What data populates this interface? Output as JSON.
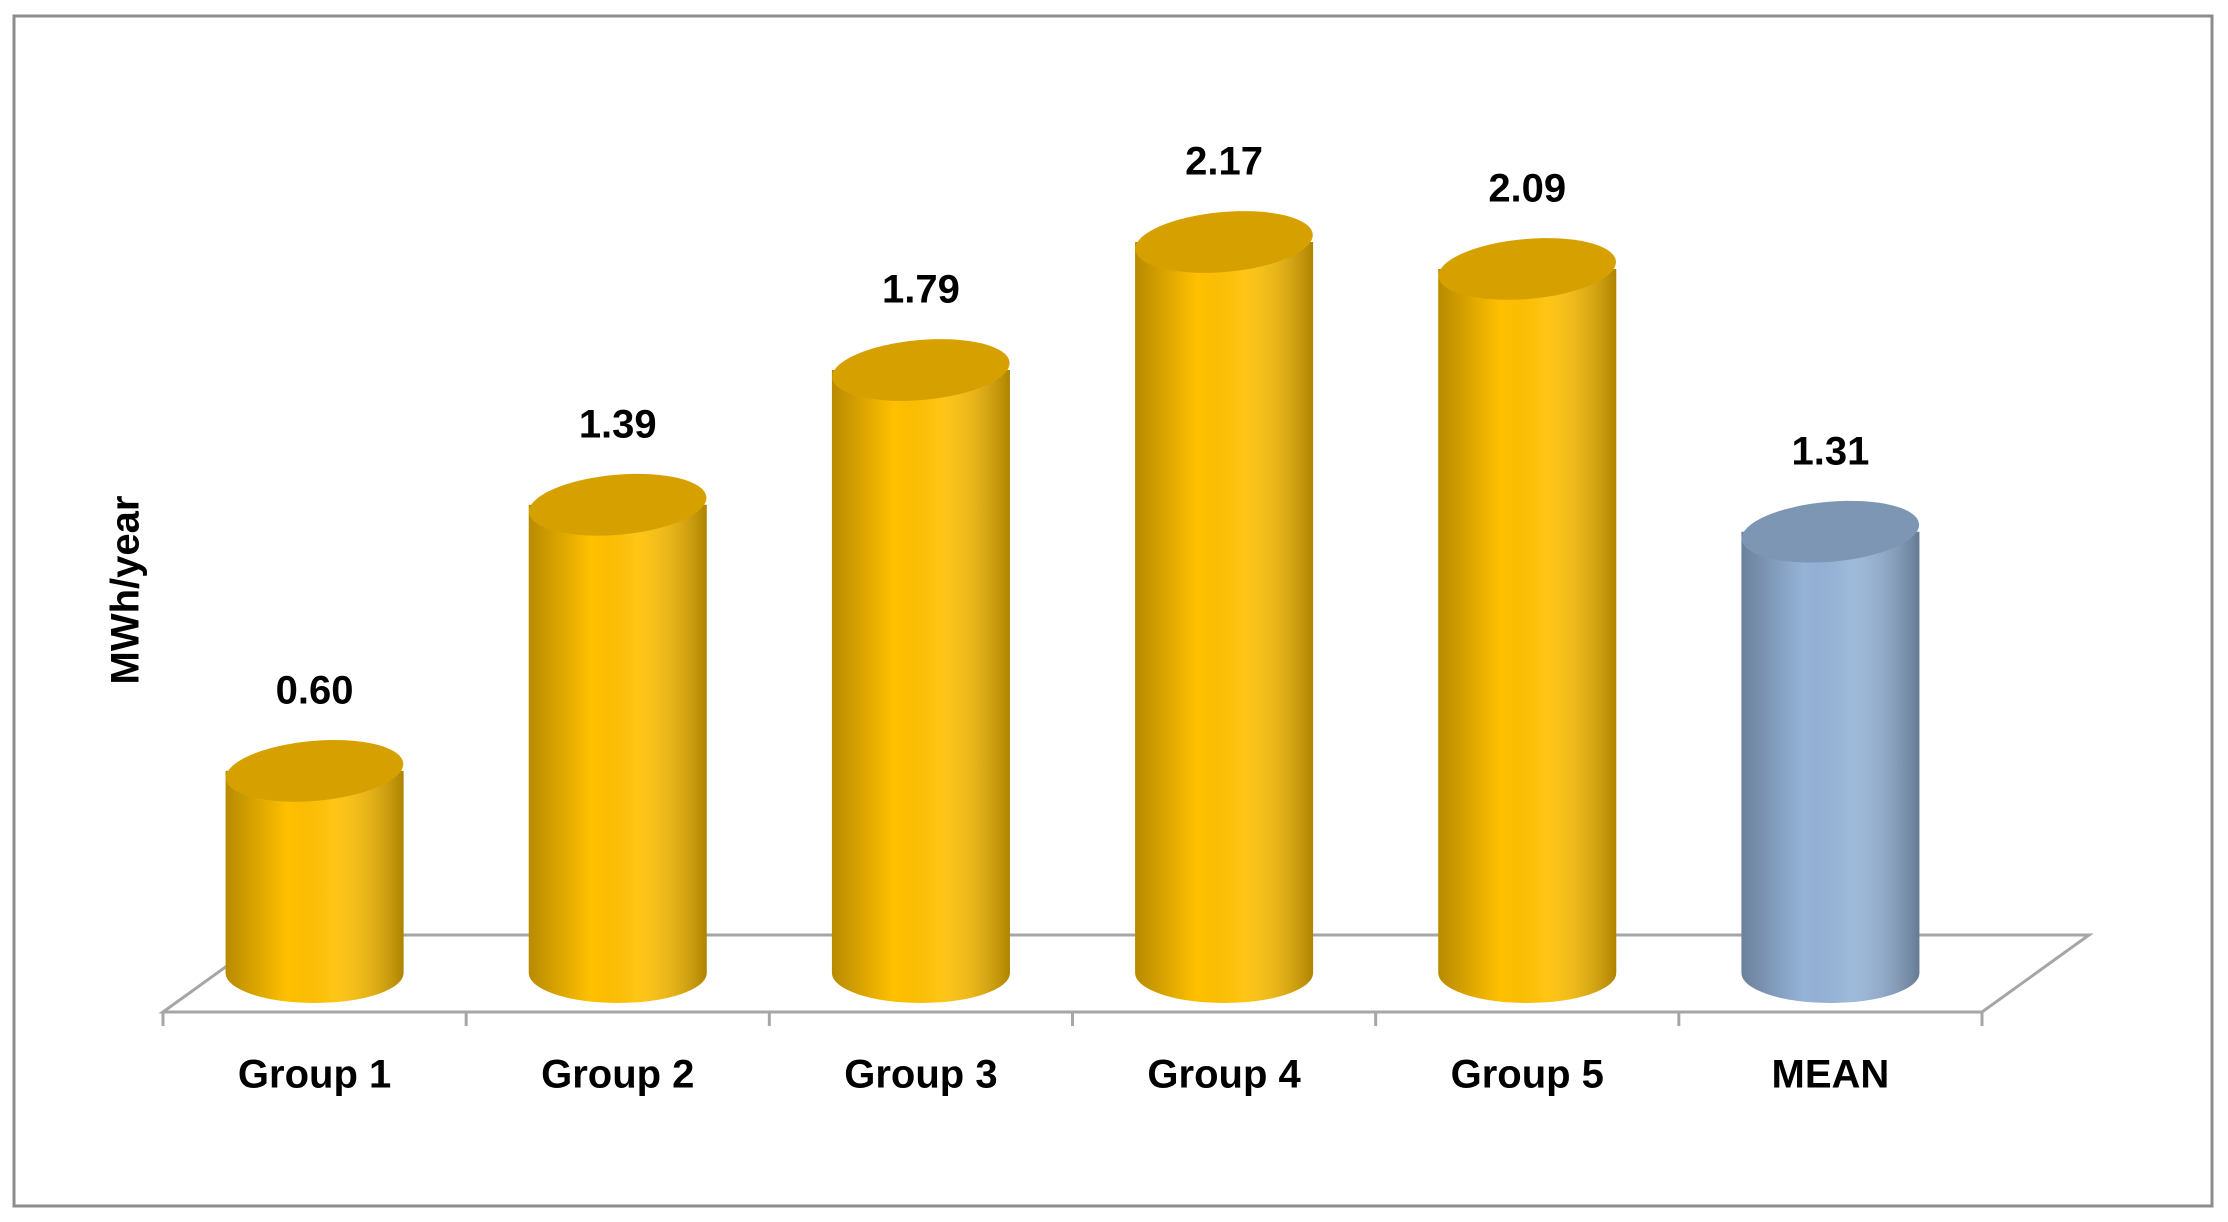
{
  "chart_data": {
    "type": "cylinder-bar",
    "y_label": "MWh/year",
    "categories": [
      "Group 1",
      "Group 2",
      "Group 3",
      "Group 4",
      "Group 5",
      "MEAN"
    ],
    "values": [
      0.6,
      1.39,
      1.79,
      2.17,
      2.09,
      1.31
    ],
    "value_labels": [
      "0.60",
      "1.39",
      "1.79",
      "2.17",
      "2.09",
      "1.31"
    ],
    "colors": [
      "#ffc000",
      "#ffc000",
      "#ffc000",
      "#ffc000",
      "#ffc000",
      "#95b3d7"
    ]
  }
}
